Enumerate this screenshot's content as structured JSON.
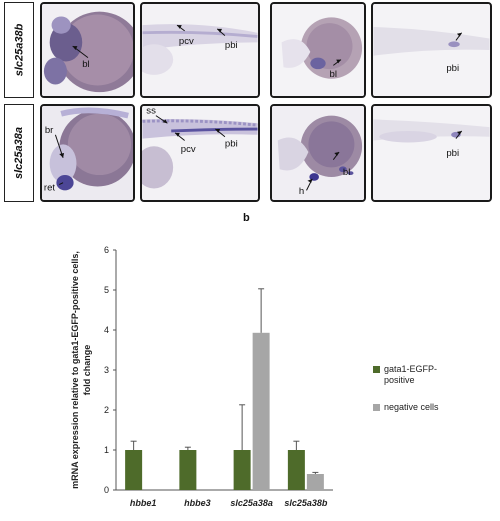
{
  "figure": {
    "row_labels": [
      "slc25a38b",
      "slc25a38a"
    ],
    "panel_b_label": "b",
    "annotations": {
      "bl": "bl",
      "pcv": "pcv",
      "pbi": "pbi",
      "ss": "ss",
      "br": "br",
      "ret": "ret",
      "h": "h"
    }
  },
  "chart_data": {
    "type": "bar",
    "title": "",
    "xlabel": "",
    "ylabel": "mRNA expression relative to gata1-EGFP-positive cells, fold change",
    "categories": [
      "hbbe1",
      "hbbe3",
      "slc25a38a",
      "slc25a38b"
    ],
    "ylim": [
      0,
      6
    ],
    "yticks": [
      0,
      1,
      2,
      3,
      4,
      5,
      6
    ],
    "grid": false,
    "legend_placement": "right",
    "series": [
      {
        "name": "gata1-EGFP-positive",
        "color": "#4e6b2a",
        "values": [
          1.0,
          1.0,
          1.0,
          1.0
        ],
        "errors": [
          0.22,
          0.07,
          1.13,
          0.22
        ]
      },
      {
        "name": "negative cells",
        "color": "#a6a6a6",
        "values": [
          null,
          null,
          3.93,
          0.4
        ],
        "errors": [
          null,
          null,
          1.1,
          0.04
        ]
      }
    ]
  }
}
